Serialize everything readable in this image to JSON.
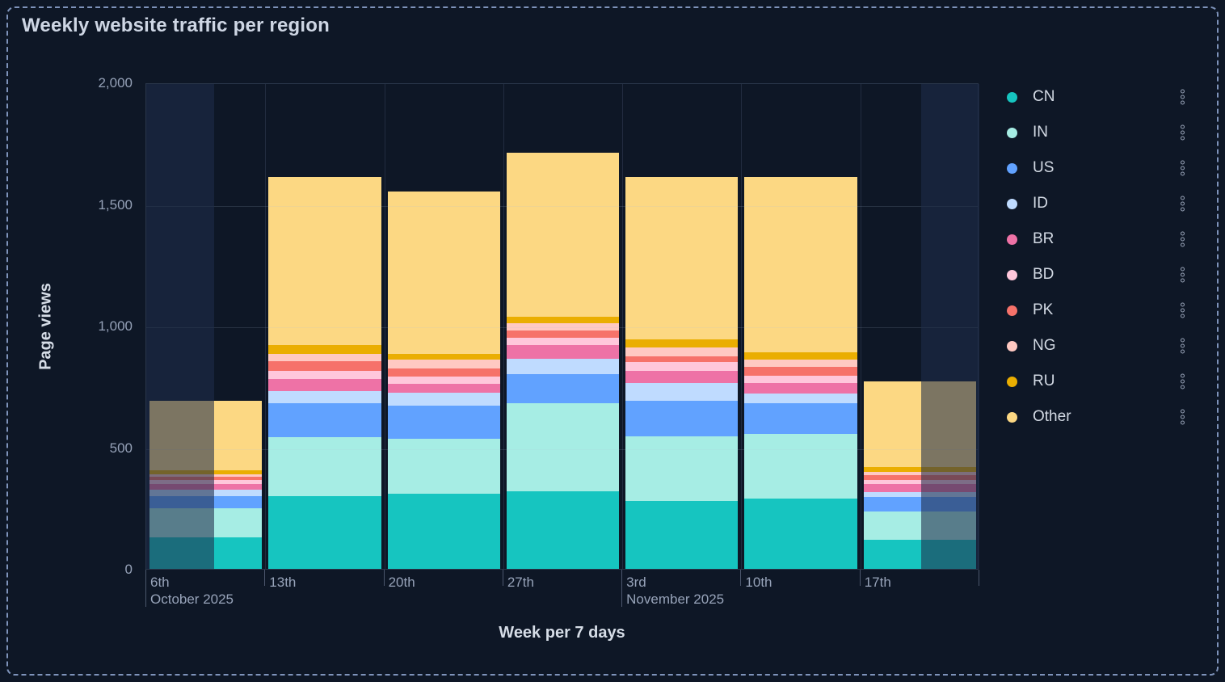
{
  "title": "Weekly website traffic per region",
  "y_axis": {
    "title": "Page views",
    "tick_labels": [
      "0",
      "500",
      "1,000",
      "1,500",
      "2,000"
    ],
    "tick_values": [
      0,
      500,
      1000,
      1500,
      2000
    ],
    "max": 2000
  },
  "x_axis": {
    "title": "Week per 7 days",
    "labels": [
      "6th",
      "13th",
      "20th",
      "27th",
      "3rd",
      "10th",
      "17th"
    ],
    "month_labels": [
      {
        "week_index": 0,
        "label": "October 2025"
      },
      {
        "week_index": 4,
        "label": "November 2025"
      }
    ]
  },
  "legend": {
    "items": [
      {
        "label": "CN",
        "color": "#16c5c0"
      },
      {
        "label": "IN",
        "color": "#a6ede4"
      },
      {
        "label": "US",
        "color": "#61a2ff"
      },
      {
        "label": "ID",
        "color": "#bfdbff"
      },
      {
        "label": "BR",
        "color": "#ee72a6"
      },
      {
        "label": "BD",
        "color": "#ffc7db"
      },
      {
        "label": "PK",
        "color": "#f6726a"
      },
      {
        "label": "NG",
        "color": "#ffc9c2"
      },
      {
        "label": "RU",
        "color": "#eaae01"
      },
      {
        "label": "Other",
        "color": "#fcd883"
      }
    ],
    "row_action_icon": "more-options-kebab"
  },
  "chart_data": {
    "type": "bar",
    "stacked": true,
    "title": "Weekly website traffic per region",
    "xlabel": "Week per 7 days",
    "ylabel": "Page views",
    "ylim": [
      0,
      2000
    ],
    "grid": true,
    "legend_position": "right",
    "categories": [
      "6th",
      "13th",
      "20th",
      "27th",
      "3rd",
      "10th",
      "17th"
    ],
    "series": [
      {
        "name": "CN",
        "color": "#16c5c0",
        "values": [
          130,
          300,
          310,
          320,
          280,
          290,
          120
        ]
      },
      {
        "name": "IN",
        "color": "#a6ede4",
        "values": [
          120,
          240,
          225,
          360,
          265,
          265,
          115
        ]
      },
      {
        "name": "US",
        "color": "#61a2ff",
        "values": [
          50,
          140,
          135,
          120,
          145,
          125,
          60
        ]
      },
      {
        "name": "ID",
        "color": "#bfdbff",
        "values": [
          25,
          50,
          55,
          65,
          75,
          40,
          20
        ]
      },
      {
        "name": "BR",
        "color": "#ee72a6",
        "values": [
          25,
          50,
          35,
          55,
          50,
          45,
          35
        ]
      },
      {
        "name": "BD",
        "color": "#ffc7db",
        "values": [
          15,
          35,
          30,
          30,
          35,
          30,
          15
        ]
      },
      {
        "name": "PK",
        "color": "#f6726a",
        "values": [
          15,
          40,
          35,
          30,
          25,
          35,
          20
        ]
      },
      {
        "name": "NG",
        "color": "#ffc9c2",
        "values": [
          10,
          30,
          35,
          30,
          35,
          30,
          15
        ]
      },
      {
        "name": "RU",
        "color": "#eaae01",
        "values": [
          15,
          35,
          25,
          25,
          35,
          30,
          20
        ]
      },
      {
        "name": "Other",
        "color": "#fcd883",
        "values": [
          285,
          690,
          665,
          675,
          665,
          720,
          350
        ]
      }
    ],
    "totals": [
      690,
      1610,
      1550,
      1710,
      1610,
      1610,
      770
    ],
    "partial_buckets": {
      "first_week_dimmed_left_fraction": 0.57,
      "last_week_dimmed_right_fraction": 0.49
    }
  }
}
